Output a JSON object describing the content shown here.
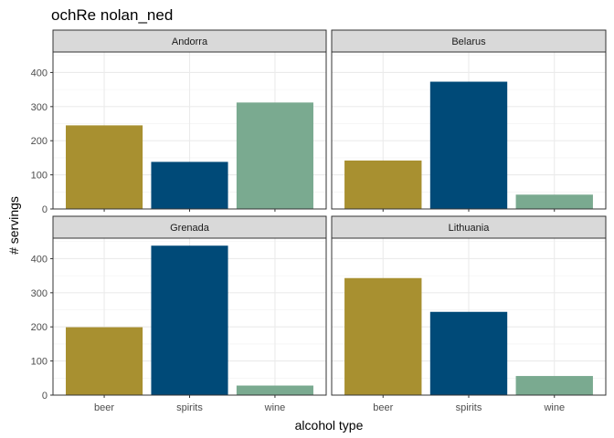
{
  "chart_data": {
    "type": "bar",
    "title": "ochRe nolan_ned",
    "xlabel": "alcohol type",
    "ylabel": "# servings",
    "categories": [
      "beer",
      "spirits",
      "wine"
    ],
    "ylim": [
      0,
      460
    ],
    "yticks": [
      "0",
      "100",
      "200",
      "300",
      "400"
    ],
    "grid": true,
    "legend": "none",
    "colors": {
      "beer": "#a89030",
      "spirits": "#004a78",
      "wine": "#7aaa90"
    },
    "panel_border": "#333333",
    "strip_fill": "#d9d9d9",
    "facets": [
      {
        "name": "Andorra",
        "values": [
          245,
          138,
          312
        ]
      },
      {
        "name": "Belarus",
        "values": [
          142,
          373,
          42
        ]
      },
      {
        "name": "Grenada",
        "values": [
          199,
          438,
          28
        ]
      },
      {
        "name": "Lithuania",
        "values": [
          343,
          244,
          56
        ]
      }
    ]
  }
}
